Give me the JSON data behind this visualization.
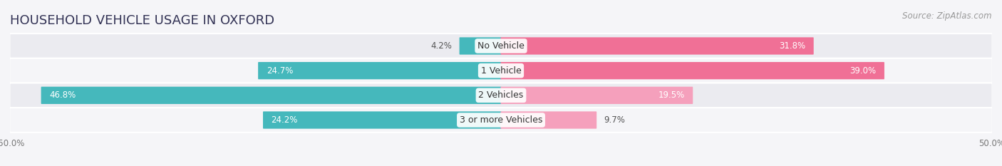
{
  "title": "HOUSEHOLD VEHICLE USAGE IN OXFORD",
  "source": "Source: ZipAtlas.com",
  "categories": [
    "No Vehicle",
    "1 Vehicle",
    "2 Vehicles",
    "3 or more Vehicles"
  ],
  "owner_values": [
    4.2,
    24.7,
    46.8,
    24.2
  ],
  "renter_values": [
    31.8,
    39.0,
    19.5,
    9.7
  ],
  "owner_color": "#45b8bc",
  "renter_colors": [
    "#f07096",
    "#f07096",
    "#f5a0bc",
    "#f5a0bc"
  ],
  "row_bg_color": "#ebebf0",
  "row_alt_bg_color": "#f5f5f8",
  "fig_bg_color": "#f5f5f8",
  "axis_limit": 50.0,
  "title_fontsize": 13,
  "source_fontsize": 8.5,
  "label_fontsize": 9,
  "value_fontsize": 8.5,
  "legend_owner_color": "#45b8bc",
  "legend_renter_color": "#f07096"
}
